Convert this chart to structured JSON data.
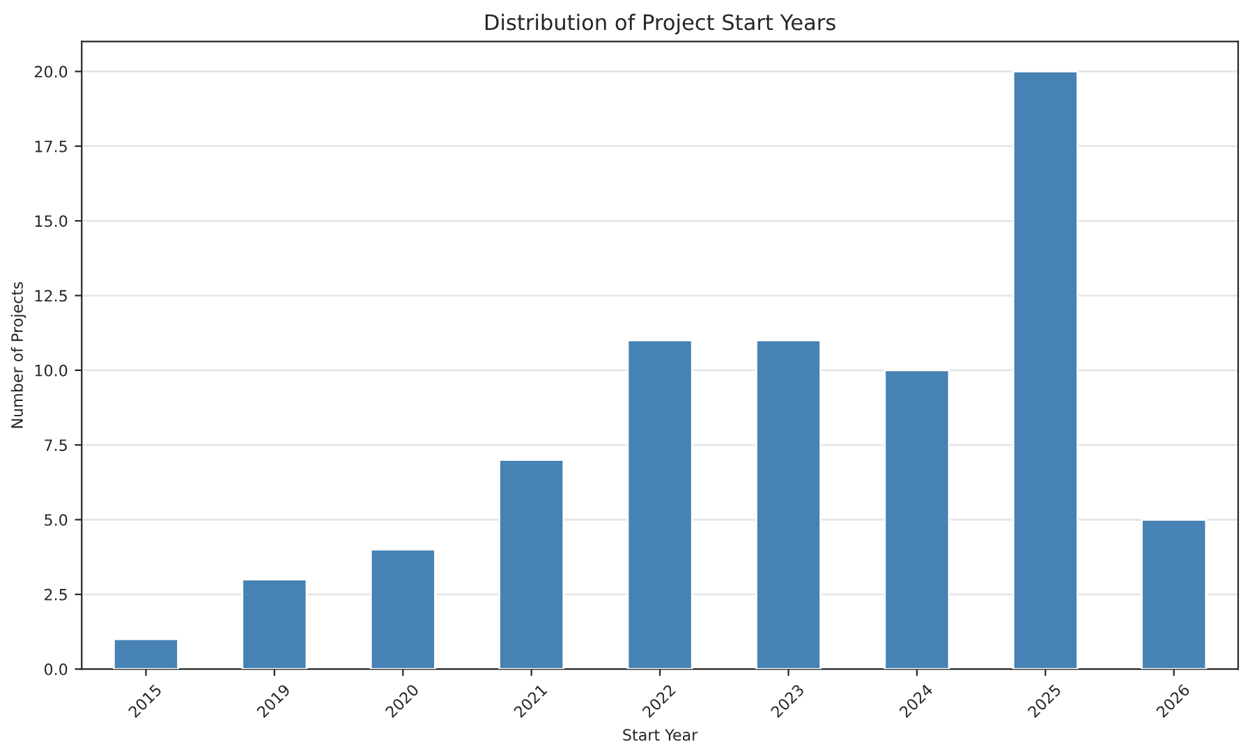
{
  "chart_data": {
    "type": "bar",
    "title": "Distribution of Project Start Years",
    "xlabel": "Start Year",
    "ylabel": "Number of Projects",
    "categories": [
      "2015",
      "2019",
      "2020",
      "2021",
      "2022",
      "2023",
      "2024",
      "2025",
      "2026"
    ],
    "values": [
      1,
      3,
      4,
      7,
      11,
      11,
      10,
      20,
      5
    ],
    "color": "#4682b4",
    "ylim": [
      0,
      21
    ],
    "yticks": [
      {
        "value": 0,
        "label": "0.0"
      },
      {
        "value": 2.5,
        "label": "2.5"
      },
      {
        "value": 5,
        "label": "5.0"
      },
      {
        "value": 7.5,
        "label": "7.5"
      },
      {
        "value": 10,
        "label": "10.0"
      },
      {
        "value": 12.5,
        "label": "12.5"
      },
      {
        "value": 15,
        "label": "15.0"
      },
      {
        "value": 17.5,
        "label": "17.5"
      },
      {
        "value": 20,
        "label": "20.0"
      }
    ],
    "grid": "y"
  }
}
